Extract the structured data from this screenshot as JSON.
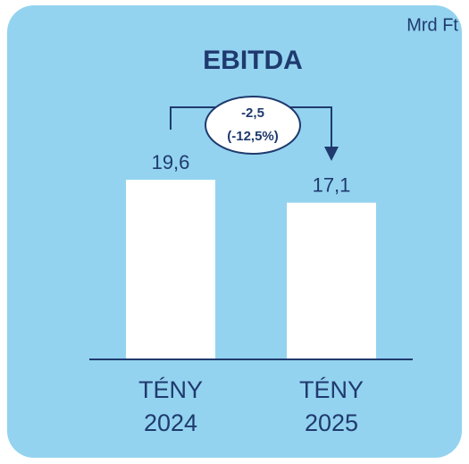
{
  "chart_data": {
    "type": "bar",
    "title": "EBITDA",
    "unit": "Mrd Ft",
    "categories": [
      "TÉNY 2024",
      "TÉNY 2025"
    ],
    "values": [
      19.6,
      17.1
    ],
    "value_labels": [
      "19,6",
      "17,1"
    ],
    "color": "#ffffff",
    "annotation": {
      "change": "-2,5",
      "change_pct": "(-12,5%)"
    }
  }
}
